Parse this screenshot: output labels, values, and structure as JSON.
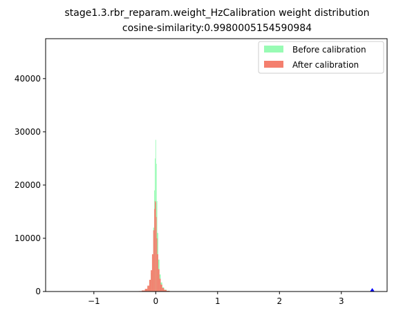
{
  "chart_data": {
    "type": "bar",
    "title": "stage1.3.rbr_reparam.weight_HzCalibration weight distribution",
    "subtitle": "cosine-similarity:0.9980005154590984",
    "xlabel": "",
    "ylabel": "",
    "xlim": [
      -1.78,
      3.74
    ],
    "ylim": [
      0,
      47500
    ],
    "xticks": [
      {
        "value": -1,
        "label": "−1"
      },
      {
        "value": 0,
        "label": "0"
      },
      {
        "value": 1,
        "label": "1"
      },
      {
        "value": 2,
        "label": "2"
      },
      {
        "value": 3,
        "label": "3"
      }
    ],
    "yticks": [
      {
        "value": 0,
        "label": "0"
      },
      {
        "value": 10000,
        "label": "10000"
      },
      {
        "value": 20000,
        "label": "20000"
      },
      {
        "value": 30000,
        "label": "30000"
      },
      {
        "value": 40000,
        "label": "40000"
      }
    ],
    "grid": false,
    "legend": {
      "position": "top-right",
      "entries": [
        {
          "name": "Before calibration",
          "color": "#98fbb4"
        },
        {
          "name": "After calibration",
          "color": "#f47f6e"
        }
      ]
    },
    "series": [
      {
        "name": "Before calibration",
        "color": "#98fbb4",
        "x": [
          -0.3,
          -0.25,
          -0.2,
          -0.15,
          -0.12,
          -0.09,
          -0.07,
          -0.05,
          -0.03,
          -0.02,
          -0.01,
          0.0,
          0.01,
          0.02,
          0.03,
          0.05,
          0.07,
          0.09,
          0.12,
          0.15,
          0.2,
          0.25,
          0.3
        ],
        "values": [
          20,
          60,
          150,
          400,
          900,
          1900,
          3500,
          6500,
          12000,
          19000,
          25000,
          28500,
          24000,
          17000,
          11000,
          6000,
          3200,
          1700,
          800,
          350,
          140,
          50,
          15
        ]
      },
      {
        "name": "After calibration",
        "color": "#f47f6e",
        "x": [
          -0.3,
          -0.25,
          -0.2,
          -0.15,
          -0.12,
          -0.09,
          -0.07,
          -0.05,
          -0.03,
          -0.02,
          -0.01,
          0.0,
          0.01,
          0.02,
          0.03,
          0.05,
          0.07,
          0.09,
          0.12,
          0.15,
          0.2,
          0.25,
          0.3
        ],
        "values": [
          30,
          80,
          200,
          500,
          1100,
          2200,
          4000,
          7000,
          11500,
          15500,
          17000,
          16800,
          14000,
          10000,
          7000,
          4200,
          2400,
          1300,
          650,
          300,
          120,
          40,
          10
        ]
      }
    ],
    "annotations": [
      {
        "type": "marker",
        "shape": "triangle",
        "x": 3.5,
        "y": 0,
        "color": "#0000ff"
      }
    ]
  }
}
